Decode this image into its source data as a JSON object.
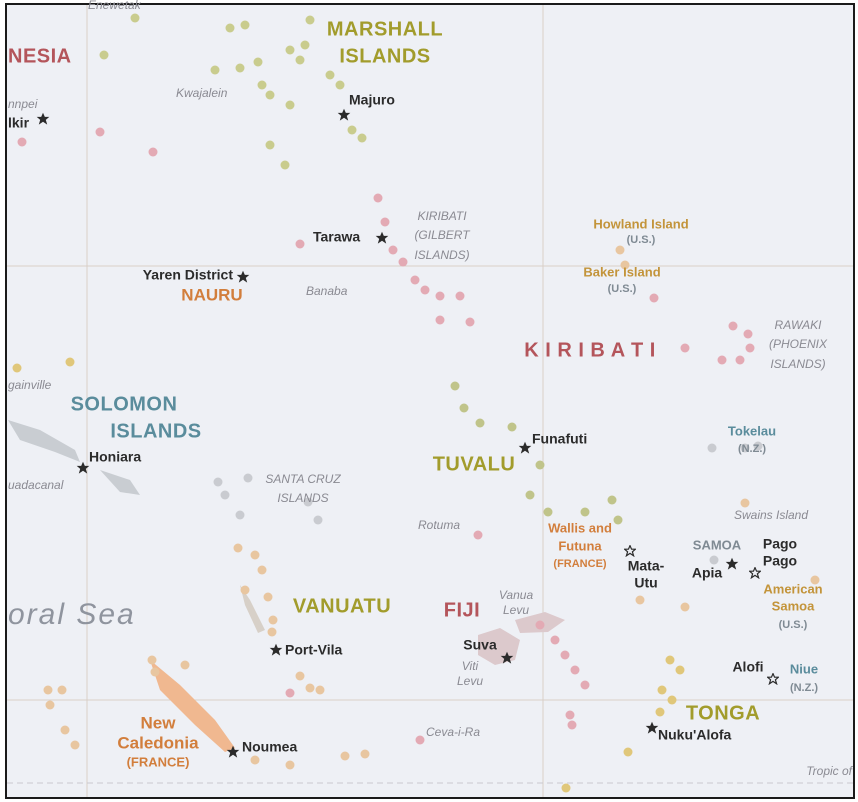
{
  "labels": {
    "micronesia": "NESIA",
    "enewetak": "Enewetak",
    "marshall_islands": [
      "MARSHALL",
      "ISLANDS"
    ],
    "kwajalein": "Kwajalein",
    "majuro": "Majuro",
    "pohnpei": "nnpei",
    "palikir": "lkir",
    "tarawa": "Tarawa",
    "gilbert_islands": [
      "KIRIBATI",
      "(GILBERT",
      "ISLANDS)"
    ],
    "yaren": "Yaren District",
    "nauru": "NAURU",
    "banaba": "Banaba",
    "howland": [
      "Howland Island",
      "(U.S.)"
    ],
    "baker": [
      "Baker Island",
      "(U.S.)"
    ],
    "kiribati": "K I R I B A T I",
    "phoenix_islands": [
      "RAWAKI",
      "(PHOENIX",
      "ISLANDS)"
    ],
    "bougainville": "gainville",
    "solomon_islands": [
      "SOLOMON",
      "ISLANDS"
    ],
    "honiara": "Honiara",
    "guadalcanal": "uadacanal",
    "funafuti": "Funafuti",
    "tuvalu": "TUVALU",
    "tokelau": [
      "Tokelau",
      "(N.Z.)"
    ],
    "santa_cruz": [
      "SANTA CRUZ",
      "ISLANDS"
    ],
    "rotuma": "Rotuma",
    "wallis_futuna": [
      "Wallis and",
      "Futuna",
      "(FRANCE)"
    ],
    "swains": "Swains Island",
    "samoa": "SAMOA",
    "pago_pago": [
      "Pago",
      "Pago"
    ],
    "mata_utu": [
      "Mata-",
      "Utu"
    ],
    "apia": "Apia",
    "american_samoa": [
      "American",
      "Samoa",
      "(U.S.)"
    ],
    "coral_sea": "oral Sea",
    "vanuatu": "VANUATU",
    "fiji": "FIJI",
    "vanua_levu": [
      "Vanua",
      "Levu"
    ],
    "suva": "Suva",
    "viti_levu": [
      "Viti",
      "Levu"
    ],
    "port_vila": "Port-Vila",
    "alofi": "Alofi",
    "niue": [
      "Niue",
      "(N.Z.)"
    ],
    "new_caledonia": [
      "New",
      "Caledonia",
      "(FRANCE)"
    ],
    "noumea": "Noumea",
    "tonga": "TONGA",
    "ceva_i_ra": "Ceva-i-Ra",
    "nukualofa": "Nuku'Alofa",
    "tropic": "Tropic of"
  }
}
